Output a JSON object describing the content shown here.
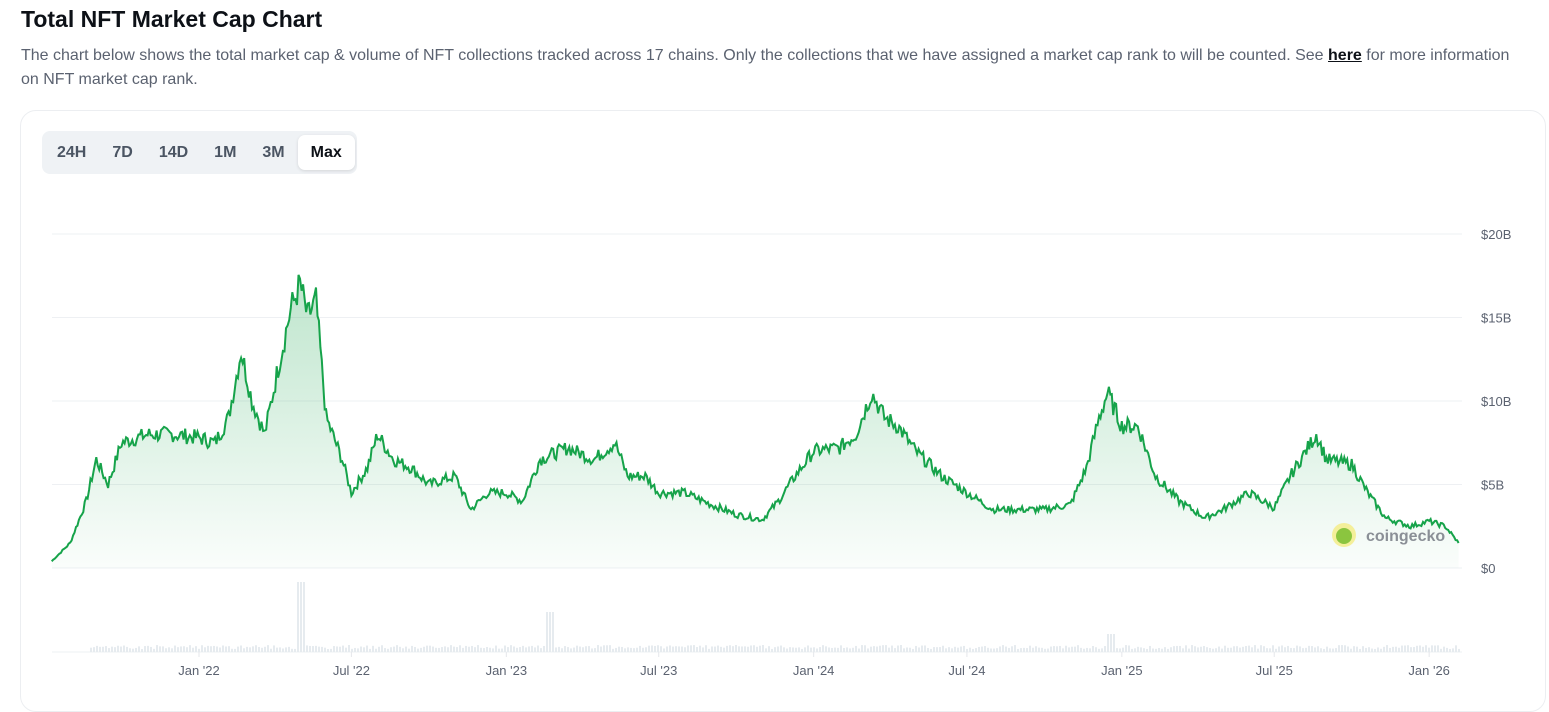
{
  "header": {
    "title": "Total NFT Market Cap Chart",
    "description": "The chart below shows the total market cap & volume of NFT collections tracked across 17 chains. Only the collections that we have assigned a market cap rank to will be counted. See ",
    "link": "here",
    "description_end": " for more information on NFT market cap rank."
  },
  "tabs": [
    {
      "label": "24H"
    },
    {
      "label": "7D"
    },
    {
      "label": "14D"
    },
    {
      "label": "1M"
    },
    {
      "label": "3M"
    },
    {
      "label": "Max",
      "active": true
    }
  ],
  "watermark": "coingecko",
  "colors": {
    "line": "#16a34a",
    "fill": "#dcf5e3",
    "volume": "#e3e8ee"
  },
  "chart_data": {
    "type": "area",
    "title": "",
    "xlabel": "",
    "ylabel": "",
    "x_ticks": [
      "Jan '22",
      "Jul '22",
      "Jan '23",
      "Jul '23",
      "Jan '24",
      "Jul '24",
      "Jan '25",
      "Jul '25",
      "Jan '26"
    ],
    "x_tick_dates": [
      "2022-01-01",
      "2022-07-01",
      "2023-01-01",
      "2023-07-01",
      "2024-01-01",
      "2024-07-01",
      "2025-01-01",
      "2025-07-01",
      "2026-01-01"
    ],
    "y_ticks": [
      "$0",
      "$5B",
      "$10B",
      "$15B",
      "$20B"
    ],
    "ylim": [
      0,
      20
    ],
    "y_unit": "B USD",
    "grid": true,
    "series": [
      {
        "values": [
          [
            "2021-07-10",
            0.4
          ],
          [
            "2021-08-01",
            1.5
          ],
          [
            "2021-08-20",
            4
          ],
          [
            "2021-09-01",
            6.5
          ],
          [
            "2021-09-15",
            5
          ],
          [
            "2021-10-01",
            7.5
          ],
          [
            "2021-11-01",
            8
          ],
          [
            "2021-12-01",
            8
          ],
          [
            "2022-01-01",
            7.8
          ],
          [
            "2022-01-20",
            7.5
          ],
          [
            "2022-02-05",
            9
          ],
          [
            "2022-02-20",
            13
          ],
          [
            "2022-03-05",
            10
          ],
          [
            "2022-03-20",
            8
          ],
          [
            "2022-04-05",
            12
          ],
          [
            "2022-04-20",
            15.5
          ],
          [
            "2022-05-01",
            17
          ],
          [
            "2022-05-10",
            15
          ],
          [
            "2022-05-20",
            16
          ],
          [
            "2022-06-01",
            9
          ],
          [
            "2022-06-20",
            6.5
          ],
          [
            "2022-07-01",
            4.5
          ],
          [
            "2022-07-20",
            6
          ],
          [
            "2022-08-01",
            8
          ],
          [
            "2022-08-20",
            6.5
          ],
          [
            "2022-09-10",
            6
          ],
          [
            "2022-10-01",
            5
          ],
          [
            "2022-11-01",
            5.5
          ],
          [
            "2022-11-20",
            3.5
          ],
          [
            "2022-12-10",
            4.5
          ],
          [
            "2023-01-01",
            4.5
          ],
          [
            "2023-01-20",
            4
          ],
          [
            "2023-02-10",
            6.5
          ],
          [
            "2023-03-15",
            7.2
          ],
          [
            "2023-04-15",
            6.5
          ],
          [
            "2023-05-10",
            7.5
          ],
          [
            "2023-05-25",
            5.5
          ],
          [
            "2023-06-15",
            5.5
          ],
          [
            "2023-07-01",
            4.5
          ],
          [
            "2023-08-01",
            4.5
          ],
          [
            "2023-09-01",
            3.8
          ],
          [
            "2023-10-01",
            3.2
          ],
          [
            "2023-11-01",
            2.9
          ],
          [
            "2023-11-20",
            4
          ],
          [
            "2023-12-10",
            5.5
          ],
          [
            "2024-01-01",
            7
          ],
          [
            "2024-02-01",
            7.2
          ],
          [
            "2024-02-20",
            8
          ],
          [
            "2024-03-10",
            10.5
          ],
          [
            "2024-03-25",
            9
          ],
          [
            "2024-04-10",
            8.5
          ],
          [
            "2024-05-01",
            7
          ],
          [
            "2024-06-01",
            5.5
          ],
          [
            "2024-07-01",
            4.5
          ],
          [
            "2024-08-01",
            3.5
          ],
          [
            "2024-09-01",
            3.5
          ],
          [
            "2024-10-01",
            3.5
          ],
          [
            "2024-11-01",
            3.8
          ],
          [
            "2024-11-20",
            6
          ],
          [
            "2024-12-05",
            9
          ],
          [
            "2024-12-15",
            10.5
          ],
          [
            "2025-01-01",
            8.5
          ],
          [
            "2025-01-20",
            8.5
          ],
          [
            "2025-02-10",
            5.5
          ],
          [
            "2025-03-10",
            4
          ],
          [
            "2025-04-10",
            3
          ],
          [
            "2025-05-01",
            3.5
          ],
          [
            "2025-06-01",
            4.5
          ],
          [
            "2025-07-01",
            3.6
          ],
          [
            "2025-07-20",
            5.5
          ],
          [
            "2025-08-10",
            7.2
          ],
          [
            "2025-08-20",
            8
          ],
          [
            "2025-09-01",
            6.5
          ],
          [
            "2025-10-01",
            6.2
          ],
          [
            "2025-10-20",
            4.5
          ],
          [
            "2025-11-10",
            3
          ],
          [
            "2025-12-10",
            2.5
          ],
          [
            "2026-01-01",
            2.8
          ],
          [
            "2026-01-20",
            2.5
          ],
          [
            "2026-02-05",
            1.5
          ]
        ]
      }
    ]
  }
}
